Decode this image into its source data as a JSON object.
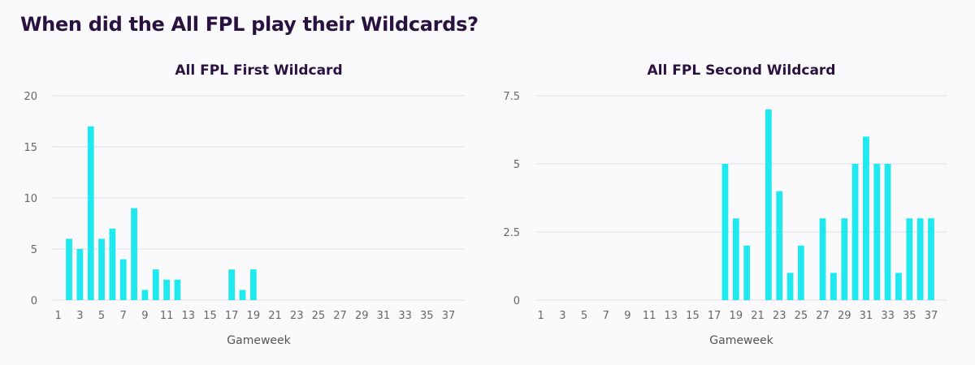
{
  "page": {
    "title": "When did the All FPL play their Wildcards?"
  },
  "colors": {
    "bar": "#1ee9ee",
    "title": "#2a1240",
    "grid": "#dcdce6"
  },
  "chart_data": [
    {
      "type": "bar",
      "title": "All FPL First Wildcard",
      "xlabel": "Gameweek",
      "ylabel": "",
      "ylim": [
        0,
        20
      ],
      "yticks": [
        0,
        5,
        10,
        15,
        20
      ],
      "ytick_labels": [
        "0",
        "5",
        "10",
        "15",
        "20"
      ],
      "xtick_labels": [
        1,
        3,
        5,
        7,
        9,
        11,
        13,
        15,
        17,
        19,
        21,
        23,
        25,
        27,
        29,
        31,
        33,
        35,
        37
      ],
      "grid": true,
      "series": [
        {
          "x": [
            2,
            3,
            4,
            5,
            6,
            7,
            8,
            9,
            10,
            11,
            12,
            17,
            18,
            19
          ],
          "values": [
            6,
            5,
            17,
            6,
            7,
            4,
            9,
            1,
            3,
            2,
            2,
            3,
            1,
            3
          ]
        }
      ]
    },
    {
      "type": "bar",
      "title": "All FPL Second Wildcard",
      "xlabel": "Gameweek",
      "ylabel": "",
      "ylim": [
        0,
        7.5
      ],
      "yticks": [
        0,
        2.5,
        5,
        7.5
      ],
      "ytick_labels": [
        "0",
        "2.5",
        "5",
        "7.5"
      ],
      "xtick_labels": [
        1,
        3,
        5,
        7,
        9,
        11,
        13,
        15,
        17,
        19,
        21,
        23,
        25,
        27,
        29,
        31,
        33,
        35,
        37
      ],
      "grid": true,
      "series": [
        {
          "x": [
            18,
            19,
            20,
            22,
            23,
            24,
            25,
            27,
            28,
            29,
            30,
            31,
            32,
            33,
            34,
            35,
            36,
            37
          ],
          "values": [
            5,
            3,
            2,
            7,
            4,
            1,
            2,
            3,
            1,
            3,
            5,
            6,
            5,
            5,
            1,
            3,
            3,
            3
          ]
        }
      ]
    }
  ]
}
